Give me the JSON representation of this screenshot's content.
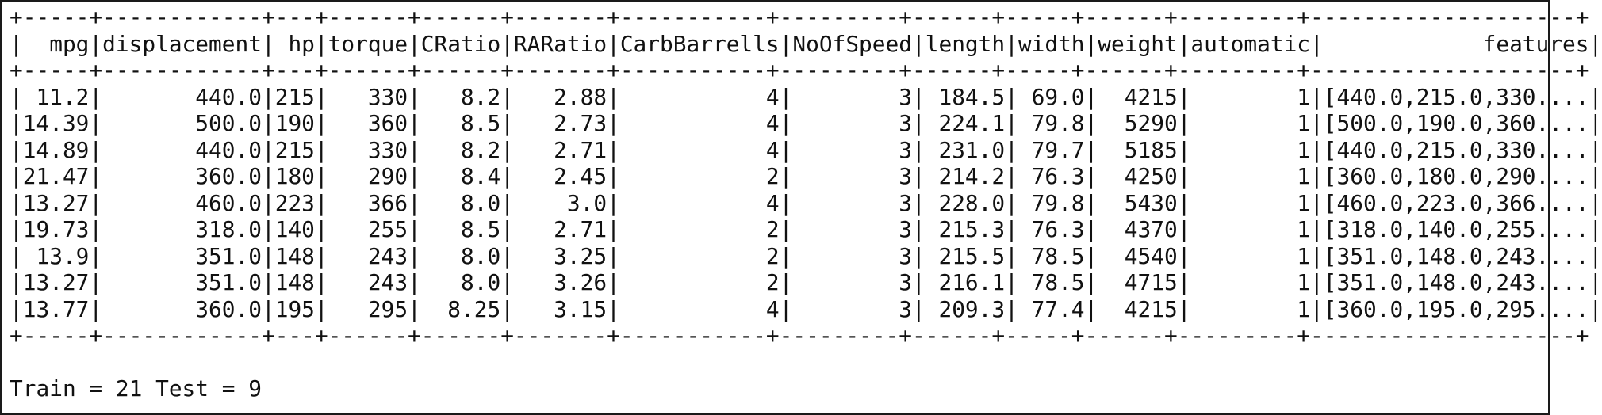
{
  "table": {
    "border": "+-----+------------+---+------+------+-------+-----------+---------+------+-----+------+---------+--------------------+",
    "header": "|  mpg|displacement| hp|torque|CRatio|RARatio|CarbBarrells|NoOfSpeed|length|width|weight|automatic|            features|",
    "rows": [
      "| 11.2|       440.0|215|   330|   8.2|   2.88|           4|        3| 184.5| 69.0|  4215|        1|[440.0,215.0,330....|",
      "|14.39|       500.0|190|   360|   8.5|   2.73|           4|        3| 224.1| 79.8|  5290|        1|[500.0,190.0,360....|",
      "|14.89|       440.0|215|   330|   8.2|   2.71|           4|        3| 231.0| 79.7|  5185|        1|[440.0,215.0,330....|",
      "|21.47|       360.0|180|   290|   8.4|   2.45|           2|        3| 214.2| 76.3|  4250|        1|[360.0,180.0,290....|",
      "|13.27|       460.0|223|   366|   8.0|    3.0|           4|        3| 228.0| 79.8|  5430|        1|[460.0,223.0,366....|",
      "|19.73|       318.0|140|   255|   8.5|   2.71|           2|        3| 215.3| 76.3|  4370|        1|[318.0,140.0,255....|",
      "| 13.9|       351.0|148|   243|   8.0|   3.25|           2|        3| 215.5| 78.5|  4540|        1|[351.0,148.0,243....|",
      "|13.27|       351.0|148|   243|   8.0|   3.26|           2|        3| 216.1| 78.5|  4715|        1|[351.0,148.0,243....|",
      "|13.77|       360.0|195|   295|  8.25|   3.15|           4|        3| 209.3| 77.4|  4215|        1|[360.0,195.0,295....|"
    ]
  },
  "summary": "Train = 21 Test = 9"
}
